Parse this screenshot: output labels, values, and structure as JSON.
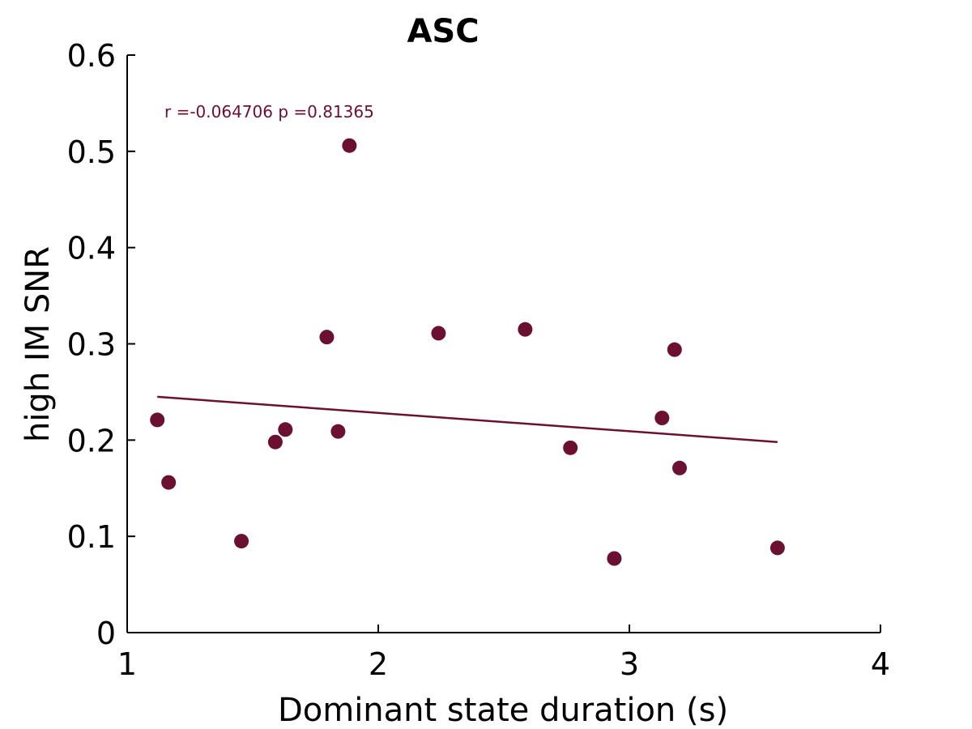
{
  "chart_data": {
    "type": "scatter",
    "title": "ASC",
    "xlabel": "Dominant state duration (s)",
    "ylabel": "high IM SNR",
    "xlim": [
      1,
      4
    ],
    "ylim": [
      0,
      0.6
    ],
    "xticks": [
      1,
      2,
      3,
      4
    ],
    "xtick_labels": [
      "1",
      "2",
      "3",
      "4"
    ],
    "yticks": [
      0,
      0.1,
      0.2,
      0.3,
      0.4,
      0.5,
      0.6
    ],
    "ytick_labels": [
      "0",
      "0.1",
      "0.2",
      "0.3",
      "0.4",
      "0.5",
      "0.6"
    ],
    "grid": false,
    "annotation": "r =-0.064706   p =0.81365",
    "color": "#6b1030",
    "points": [
      {
        "x": 1.12,
        "y": 0.221
      },
      {
        "x": 1.165,
        "y": 0.156
      },
      {
        "x": 1.455,
        "y": 0.095
      },
      {
        "x": 1.59,
        "y": 0.198
      },
      {
        "x": 1.63,
        "y": 0.211
      },
      {
        "x": 1.795,
        "y": 0.307
      },
      {
        "x": 1.84,
        "y": 0.209
      },
      {
        "x": 1.885,
        "y": 0.506
      },
      {
        "x": 2.24,
        "y": 0.311
      },
      {
        "x": 2.585,
        "y": 0.315
      },
      {
        "x": 2.765,
        "y": 0.192
      },
      {
        "x": 2.94,
        "y": 0.077
      },
      {
        "x": 3.13,
        "y": 0.223
      },
      {
        "x": 3.18,
        "y": 0.294
      },
      {
        "x": 3.2,
        "y": 0.171
      },
      {
        "x": 3.59,
        "y": 0.088
      }
    ],
    "fit_line": {
      "x": [
        1.12,
        3.59
      ],
      "y": [
        0.245,
        0.198
      ]
    }
  }
}
